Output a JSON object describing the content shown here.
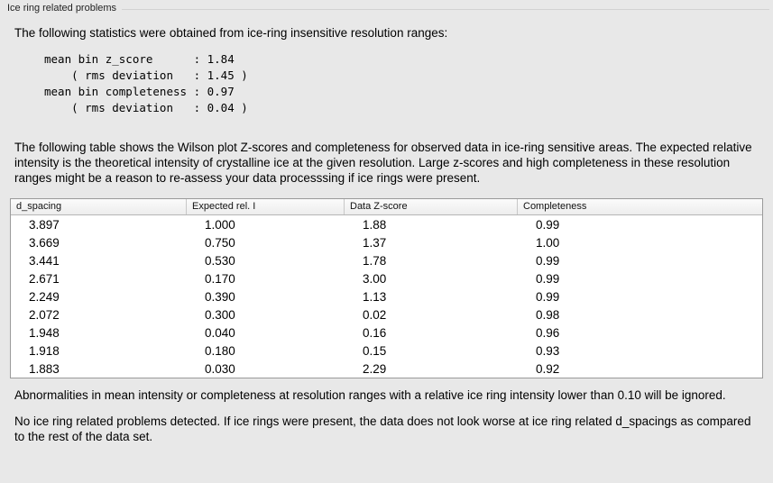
{
  "panel": {
    "title": "Ice ring related problems"
  },
  "intro": "The following statistics were obtained from ice-ring insensitive resolution ranges:",
  "stats_block": "mean bin z_score      : 1.84\n    ( rms deviation   : 1.45 )\nmean bin completeness : 0.97\n    ( rms deviation   : 0.04 )",
  "table_intro": "The following table shows the Wilson plot Z-scores and completeness for observed data in ice-ring sensitive areas. The expected relative intensity is the theoretical intensity of crystalline ice at the given resolution. Large z-scores and high completeness in these resolution ranges might be a reason to re-assess your data processsing if ice rings were present.",
  "table": {
    "columns": [
      "d_spacing",
      "Expected rel. I",
      "Data Z-score",
      "Completeness"
    ],
    "rows": [
      [
        "3.897",
        "1.000",
        "1.88",
        "0.99"
      ],
      [
        "3.669",
        "0.750",
        "1.37",
        "1.00"
      ],
      [
        "3.441",
        "0.530",
        "1.78",
        "0.99"
      ],
      [
        "2.671",
        "0.170",
        "3.00",
        "0.99"
      ],
      [
        "2.249",
        "0.390",
        "1.13",
        "0.99"
      ],
      [
        "2.072",
        "0.300",
        "0.02",
        "0.98"
      ],
      [
        "1.948",
        "0.040",
        "0.16",
        "0.96"
      ],
      [
        "1.918",
        "0.180",
        "0.15",
        "0.93"
      ],
      [
        "1.883",
        "0.030",
        "2.29",
        "0.92"
      ]
    ]
  },
  "notes": {
    "ignore_note": "Abnormalities in mean intensity or completeness at resolution ranges with a relative ice ring intensity lower than 0.10 will be ignored.",
    "conclusion": "No ice ring related problems detected. If ice rings were present, the data does not look worse at ice ring related d_spacings as compared to the rest of the data set."
  }
}
